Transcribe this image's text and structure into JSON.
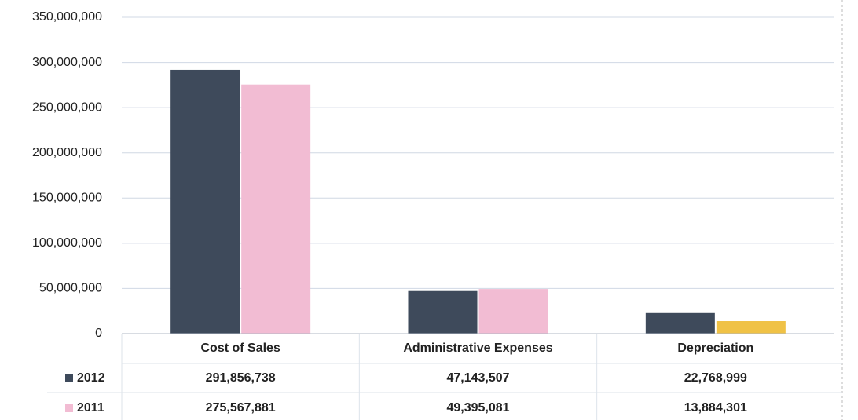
{
  "chart_data": {
    "type": "bar",
    "categories": [
      "Cost of Sales",
      "Administrative Expenses",
      "Depreciation"
    ],
    "series": [
      {
        "name": "2012",
        "color": "#3e4a5b",
        "values": [
          291856738,
          47143507,
          22768999
        ],
        "value_labels": [
          "291,856,738",
          "47,143,507",
          "22,768,999"
        ]
      },
      {
        "name": "2011",
        "color": "#f2bcd3",
        "point_colors": [
          "#f2bcd3",
          "#f2bcd3",
          "#f0c246"
        ],
        "values": [
          275567881,
          49395081,
          13884301
        ],
        "value_labels": [
          "275,567,881",
          "49,395,081",
          "13,884,301"
        ]
      }
    ],
    "ylim": [
      0,
      350000000
    ],
    "yticks": [
      0,
      {
        "value": 50000000,
        "label": "50,000,000"
      },
      {
        "value": 100000000,
        "label": "100,000,000"
      },
      {
        "value": 150000000,
        "label": "150,000,000"
      },
      {
        "value": 200000000,
        "label": "200,000,000"
      },
      {
        "value": 250000000,
        "label": "250,000,000"
      },
      {
        "value": 300000000,
        "label": "300,000,000"
      },
      {
        "value": 350000000,
        "label": "350,000,000"
      }
    ],
    "grid": true
  }
}
